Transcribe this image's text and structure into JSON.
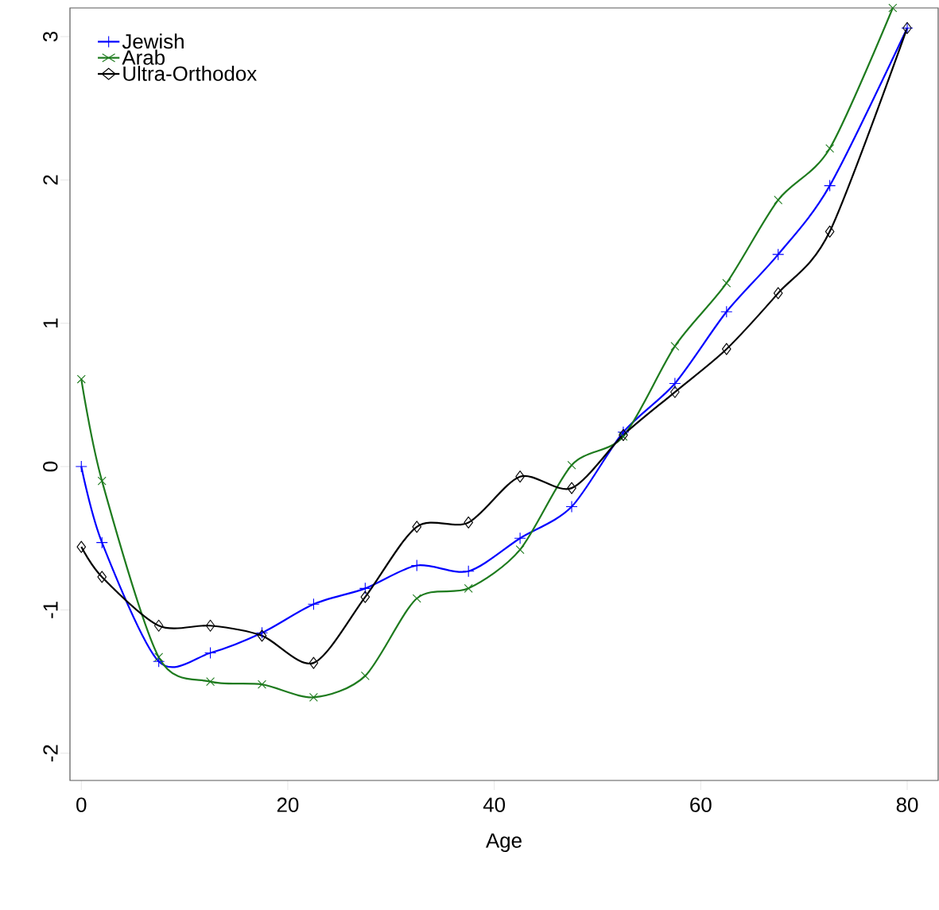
{
  "chart_data": {
    "type": "line",
    "xlabel": "Age",
    "series": [
      {
        "name": "Jewish",
        "color": "#0000ff",
        "marker": "plus",
        "x": [
          0,
          2,
          7.5,
          12.5,
          17.5,
          22.5,
          27.5,
          32.5,
          37.5,
          42.5,
          47.5,
          52.5,
          57.5,
          62.5,
          67.5,
          72.5,
          80
        ],
        "values": [
          0,
          -0.53,
          -1.36,
          -1.3,
          -1.16,
          -0.96,
          -0.85,
          -0.69,
          -0.73,
          -0.5,
          -0.28,
          0.24,
          0.58,
          1.08,
          1.48,
          1.96,
          3.06
        ]
      },
      {
        "name": "Arab",
        "color": "#1e7b1e",
        "marker": "cross",
        "x": [
          0,
          2,
          7.5,
          12.5,
          17.5,
          22.5,
          27.5,
          32.5,
          37.5,
          42.5,
          47.5,
          52.5,
          57.5,
          62.5,
          67.5,
          72.5,
          78.6
        ],
        "values": [
          0.61,
          -0.1,
          -1.33,
          -1.5,
          -1.52,
          -1.61,
          -1.46,
          -0.92,
          -0.85,
          -0.58,
          0.01,
          0.21,
          0.84,
          1.28,
          1.86,
          2.22,
          3.2
        ]
      },
      {
        "name": "Ultra-Orthodox",
        "color": "#000000",
        "marker": "diamond",
        "x": [
          0,
          2,
          7.5,
          12.5,
          17.5,
          22.5,
          27.5,
          32.5,
          37.5,
          42.5,
          47.5,
          52.5,
          57.5,
          62.5,
          67.5,
          72.5,
          80
        ],
        "values": [
          -0.56,
          -0.77,
          -1.11,
          -1.11,
          -1.18,
          -1.37,
          -0.91,
          -0.42,
          -0.39,
          -0.07,
          -0.15,
          0.22,
          0.52,
          0.82,
          1.21,
          1.64,
          3.06
        ]
      }
    ],
    "xlim": [
      -1.1,
      83
    ],
    "ylim": [
      -2.19,
      3.2
    ],
    "xticks": [
      0,
      20,
      40,
      60,
      80
    ],
    "yticks": [
      -2,
      -1,
      0,
      1,
      2,
      3
    ],
    "legend": "top left",
    "grid": false
  }
}
